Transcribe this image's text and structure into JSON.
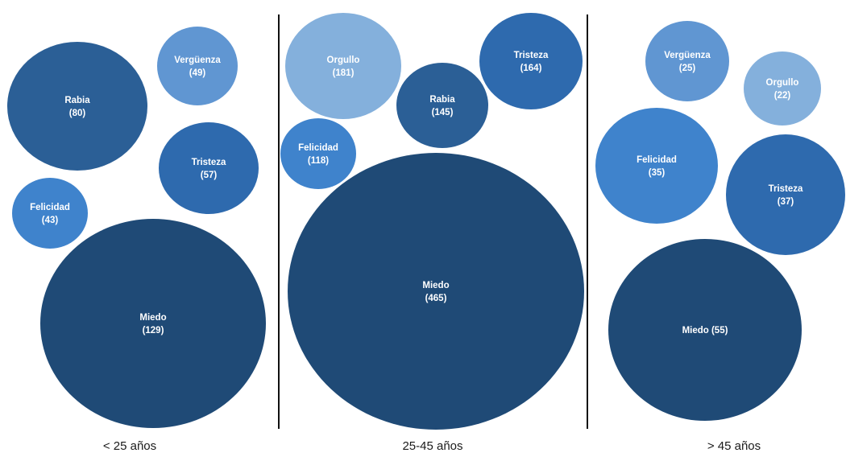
{
  "chart_data": {
    "type": "bubble",
    "groups": [
      {
        "label": "< 25 años",
        "bubbles": [
          {
            "emotion": "Rabia",
            "value": 80,
            "value_text": "(80)",
            "color": "#2b5f96"
          },
          {
            "emotion": "Vergüenza",
            "value": 49,
            "value_text": "(49)",
            "color": "#6096d2"
          },
          {
            "emotion": "Tristeza",
            "value": 57,
            "value_text": "(57)",
            "color": "#2e6aae"
          },
          {
            "emotion": "Felicidad",
            "value": 43,
            "value_text": "(43)",
            "color": "#3f83cc"
          },
          {
            "emotion": "Miedo",
            "value": 129,
            "value_text": "(129)",
            "color": "#1f4a76"
          }
        ]
      },
      {
        "label": "25-45 años",
        "bubbles": [
          {
            "emotion": "Orgullo",
            "value": 181,
            "value_text": "(181)",
            "color": "#84b0dc"
          },
          {
            "emotion": "Tristeza",
            "value": 164,
            "value_text": "(164)",
            "color": "#2e6aae"
          },
          {
            "emotion": "Rabia",
            "value": 145,
            "value_text": "(145)",
            "color": "#2b5f96"
          },
          {
            "emotion": "Felicidad",
            "value": 118,
            "value_text": "(118)",
            "color": "#3f83cc"
          },
          {
            "emotion": "Miedo",
            "value": 465,
            "value_text": "(465)",
            "color": "#1f4a76"
          }
        ]
      },
      {
        "label": "> 45 años",
        "bubbles": [
          {
            "emotion": "Vergüenza",
            "value": 25,
            "value_text": "(25)",
            "color": "#6096d2"
          },
          {
            "emotion": "Orgullo",
            "value": 22,
            "value_text": "(22)",
            "color": "#84b0dc"
          },
          {
            "emotion": "Felicidad",
            "value": 35,
            "value_text": "(35)",
            "color": "#3f83cc"
          },
          {
            "emotion": "Tristeza",
            "value": 37,
            "value_text": "(37)",
            "color": "#2e6aae"
          },
          {
            "emotion": "Miedo",
            "value": 55,
            "value_text": "Miedo (55)",
            "color": "#1f4a76",
            "inline": true
          }
        ]
      }
    ],
    "separators": "vertical lines between groups",
    "legend": "none",
    "grid": false
  }
}
